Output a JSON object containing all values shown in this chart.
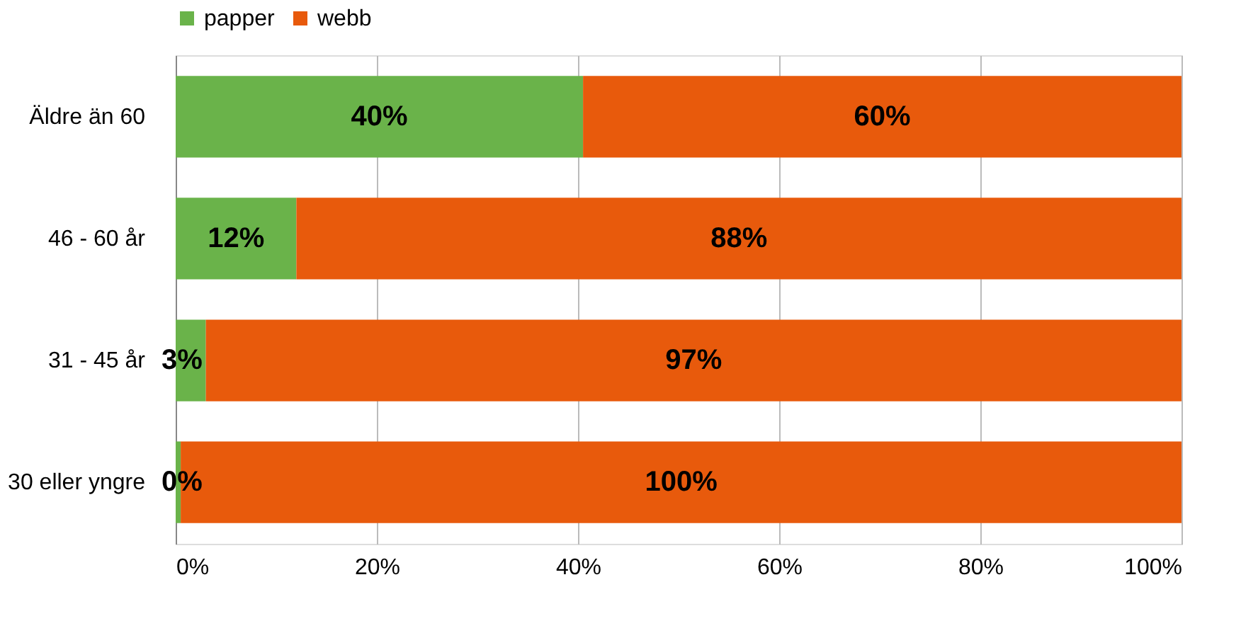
{
  "chart_data": {
    "type": "bar",
    "orientation": "horizontal",
    "stacked": true,
    "categories": [
      "Äldre än 60",
      "46 - 60 år",
      "31 - 45 år",
      "30 eller yngre"
    ],
    "series": [
      {
        "name": "papper",
        "color": "#6ab34a",
        "values": [
          40.5,
          12,
          3,
          0.5
        ],
        "value_labels": [
          "40%",
          "12%",
          "3%",
          "0%"
        ]
      },
      {
        "name": "webb",
        "color": "#e85a0c",
        "values": [
          59.5,
          88,
          97,
          99.5
        ],
        "value_labels": [
          "60%",
          "88%",
          "97%",
          "100%"
        ]
      }
    ],
    "xlim": [
      0,
      100
    ],
    "xticks": [
      {
        "value": 0,
        "label": "0%"
      },
      {
        "value": 20,
        "label": "20%"
      },
      {
        "value": 40,
        "label": "40%"
      },
      {
        "value": 60,
        "label": "60%"
      },
      {
        "value": 80,
        "label": "80%"
      },
      {
        "value": 100,
        "label": "100%"
      }
    ],
    "grid": "x",
    "legend": "top"
  }
}
